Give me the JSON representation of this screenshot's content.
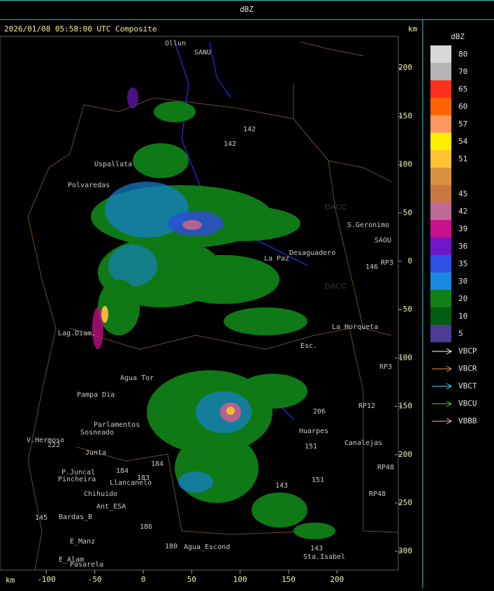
{
  "header": {
    "title": "dBZ"
  },
  "map": {
    "title": "2026/01/08 05:58:00 UTC Composite",
    "x_unit": "km",
    "y_unit": "km",
    "x_ticks": [
      -100,
      -50,
      0,
      50,
      100,
      150,
      200
    ],
    "y_ticks": [
      200,
      150,
      100,
      50,
      0,
      -50,
      -100,
      -150,
      -200,
      -250,
      -300
    ],
    "watermarks": [
      "DACC",
      "DACC"
    ],
    "places": [
      "Ollun",
      "SANU",
      "Uspallata",
      "Polvaredas",
      "S.Geronimo",
      "SAOU",
      "Desaguadero",
      "La Paz",
      "RP3",
      "146",
      "La Horqueta",
      "Esc.",
      "RP3",
      "Lag.Diam.",
      "Agua Tor",
      "Pampa Dia",
      "RP12",
      "Parlamentos",
      "Sosneado",
      "V.Hermoso",
      "Huarpes",
      "Canalejas",
      "Junta",
      "P.Juncal",
      "Pincheira",
      "Llancanelo",
      "Chihuido",
      "RP48",
      "RP48",
      "Ant_ESA",
      "Bardas_B",
      "E_Manz",
      "Agua_Escond",
      "E_Alam",
      "Pasarela",
      "Sta.Isabel",
      "142",
      "142",
      "206",
      "151",
      "151",
      "143",
      "143",
      "180",
      "183",
      "184",
      "184",
      "145",
      "222",
      "186"
    ]
  },
  "colorbar": {
    "unit": "dBZ",
    "levels": [
      {
        "label": "80",
        "color": "#d8d8d8"
      },
      {
        "label": "70",
        "color": "#b4b4b4"
      },
      {
        "label": "65",
        "color": "#ff3020"
      },
      {
        "label": "60",
        "color": "#ff6400"
      },
      {
        "label": "57",
        "color": "#ff9860"
      },
      {
        "label": "54",
        "color": "#ffee00"
      },
      {
        "label": "51",
        "color": "#ffc434"
      },
      {
        "label": null,
        "color": "#d89040"
      },
      {
        "label": "45",
        "color": "#c87840"
      },
      {
        "label": "42",
        "color": "#c06898"
      },
      {
        "label": "39",
        "color": "#c8108c"
      },
      {
        "label": "36",
        "color": "#7018c8"
      },
      {
        "label": "35",
        "color": "#3050e8"
      },
      {
        "label": "30",
        "color": "#1888e0"
      },
      {
        "label": "20",
        "color": "#108018"
      },
      {
        "label": "10",
        "color": "#005c10"
      },
      {
        "label": "5",
        "color": "#4c3c94"
      }
    ]
  },
  "legend": [
    {
      "name": "VBCP",
      "color": "#ffffff"
    },
    {
      "name": "VBCR",
      "color": "#ff9040"
    },
    {
      "name": "VBCT",
      "color": "#40e0f0"
    },
    {
      "name": "VBCU",
      "color": "#30e030"
    },
    {
      "name": "VBBB",
      "color": "#ffb0c0"
    }
  ]
}
